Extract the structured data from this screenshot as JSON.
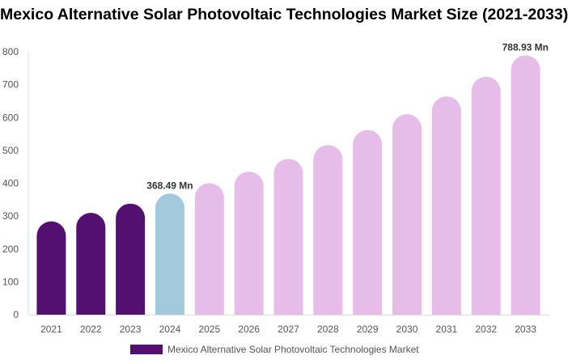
{
  "chart_data": {
    "type": "bar",
    "title": "Mexico Alternative Solar Photovoltaic Technologies Market Size (2021-2033)",
    "categories": [
      "2021",
      "2022",
      "2023",
      "2024",
      "2025",
      "2026",
      "2027",
      "2028",
      "2029",
      "2030",
      "2031",
      "2032",
      "2033"
    ],
    "series": [
      {
        "name": "Mexico Alternative Solar Photovoltaic Technologies Market",
        "values": [
          284,
          310,
          338,
          368.49,
          400,
          435,
          474,
          516,
          562,
          610,
          664,
          724,
          788.93
        ]
      }
    ],
    "data_labels": {
      "3": "368.49 Mn",
      "12": "788.93 Mn"
    },
    "ylim": [
      0,
      800
    ],
    "yticks": [
      0,
      100,
      200,
      300,
      400,
      500,
      600,
      700,
      800
    ],
    "grid": false,
    "legend_position": "bottom",
    "colors": {
      "historical": "#541070",
      "current": "#a3c9dd",
      "forecast": "#e6bce9"
    },
    "color_groups": [
      "historical",
      "historical",
      "historical",
      "current",
      "forecast",
      "forecast",
      "forecast",
      "forecast",
      "forecast",
      "forecast",
      "forecast",
      "forecast",
      "forecast"
    ]
  }
}
